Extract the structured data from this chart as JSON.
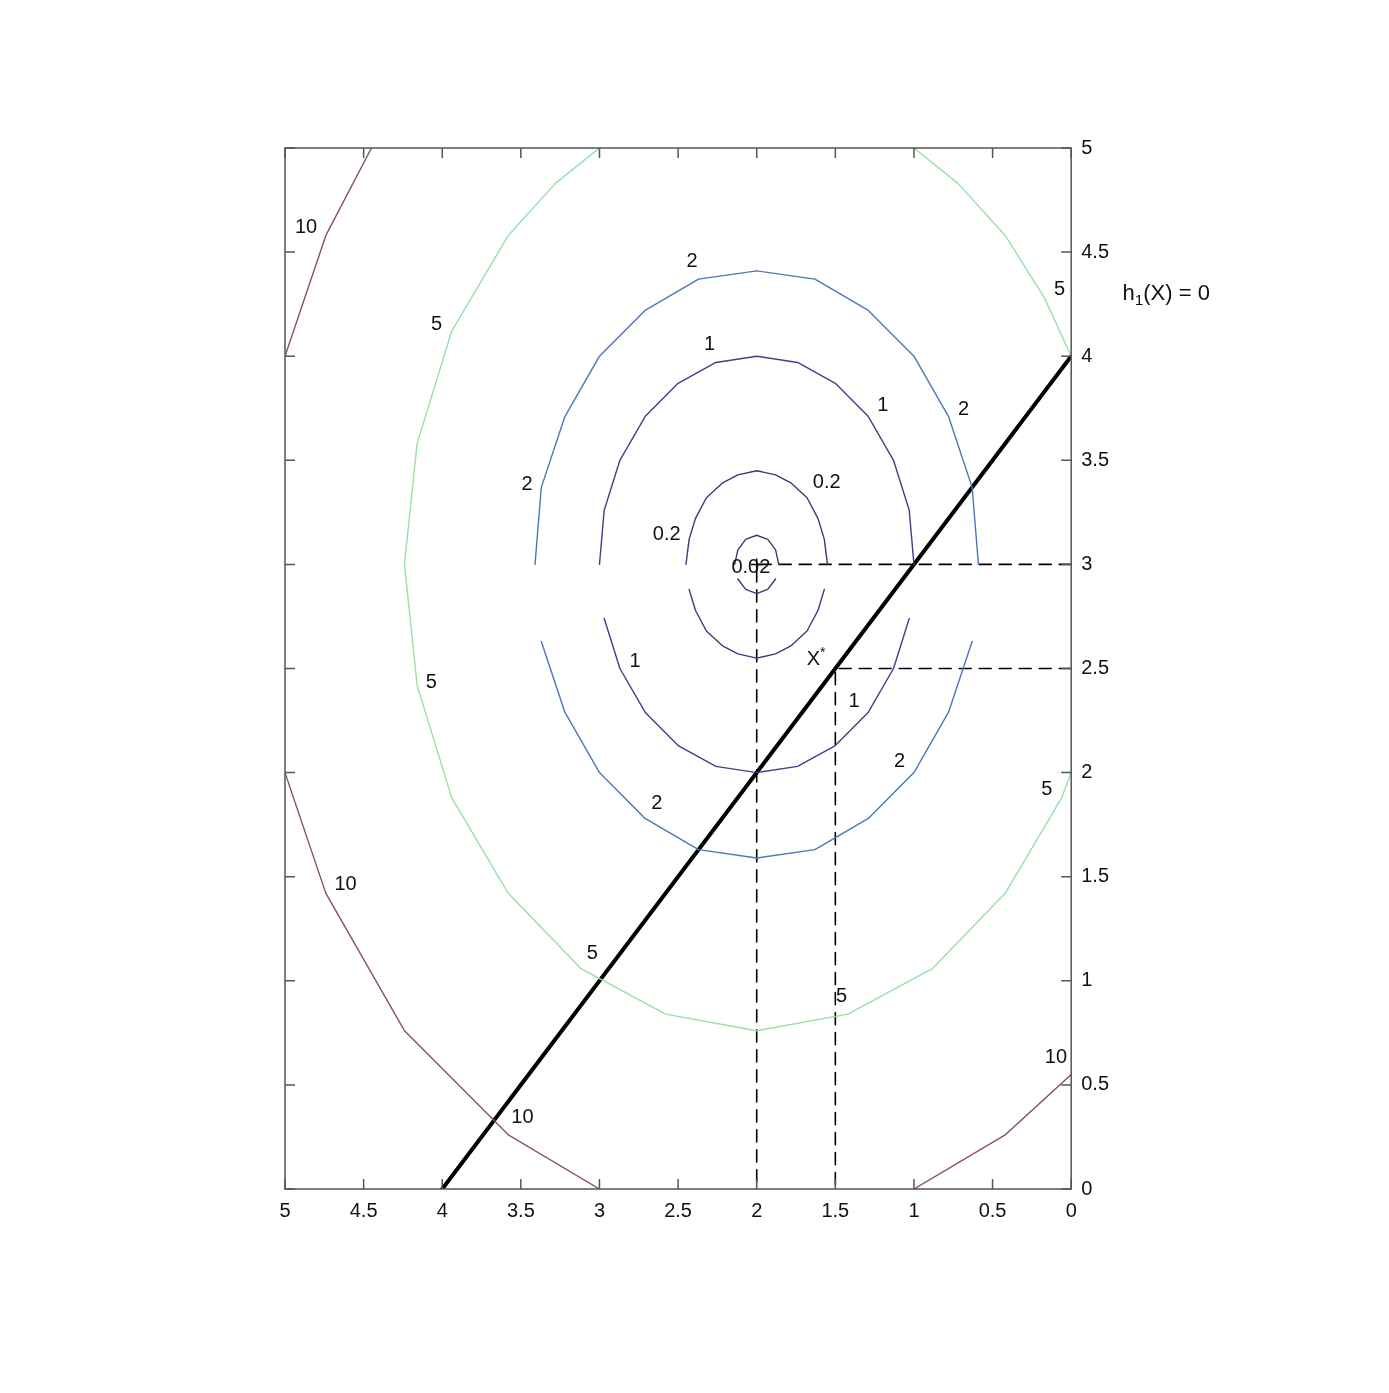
{
  "chart_data": {
    "type": "line",
    "xlim": [
      5,
      0
    ],
    "ylim": [
      0,
      5
    ],
    "xticks": [
      0,
      0.5,
      1,
      1.5,
      2,
      2.5,
      3,
      3.5,
      4,
      4.5,
      5
    ],
    "yticks": [
      0,
      0.5,
      1,
      1.5,
      2,
      2.5,
      3,
      3.5,
      4,
      4.5,
      5
    ],
    "legend": false,
    "grid": false,
    "series": [
      {
        "color": "#3a3a78",
        "x": [
          2.14,
          2.12,
          2.07,
          2,
          1.93,
          1.88,
          1.86
        ],
        "values": [
          3,
          3.07,
          3.12,
          3.14,
          3.12,
          3.07,
          3
        ]
      },
      {
        "color": "#3a3a78",
        "x": [
          1.88,
          1.93,
          2,
          2.07,
          2.12
        ],
        "values": [
          2.93,
          2.88,
          2.86,
          2.88,
          2.93
        ]
      },
      {
        "color": "#3a3a78",
        "x": [
          2.45,
          2.43,
          2.39,
          2.32,
          2.22,
          2.12,
          2,
          1.88,
          1.78,
          1.68,
          1.61,
          1.57,
          1.55
        ],
        "values": [
          3,
          3.12,
          3.22,
          3.32,
          3.39,
          3.43,
          3.45,
          3.43,
          3.39,
          3.32,
          3.22,
          3.12,
          3
        ]
      },
      {
        "color": "#3a3a78",
        "x": [
          1.57,
          1.61,
          1.68,
          1.78,
          1.88,
          2,
          2.12,
          2.22,
          2.32,
          2.39,
          2.43
        ],
        "values": [
          2.88,
          2.78,
          2.68,
          2.61,
          2.57,
          2.55,
          2.57,
          2.61,
          2.68,
          2.78,
          2.88
        ]
      },
      {
        "color": "#404088",
        "x": [
          3,
          2.97,
          2.87,
          2.71,
          2.5,
          2.26,
          2,
          1.74,
          1.5,
          1.29,
          1.13,
          1.03,
          1
        ],
        "values": [
          3,
          3.26,
          3.5,
          3.71,
          3.87,
          3.97,
          4,
          3.97,
          3.87,
          3.71,
          3.5,
          3.26,
          3
        ]
      },
      {
        "color": "#404088",
        "x": [
          1.03,
          1.13,
          1.29,
          1.5,
          1.74,
          2,
          2.26,
          2.5,
          2.71,
          2.87,
          2.97
        ],
        "values": [
          2.74,
          2.5,
          2.29,
          2.13,
          2.03,
          2,
          2.03,
          2.13,
          2.29,
          2.5,
          2.74
        ]
      },
      {
        "color": "#4a78b8",
        "x": [
          3.41,
          3.37,
          3.22,
          3,
          2.71,
          2.37,
          2,
          1.63,
          1.29,
          1,
          0.78,
          0.63,
          0.59
        ],
        "values": [
          3,
          3.37,
          3.71,
          4,
          4.22,
          4.37,
          4.41,
          4.37,
          4.22,
          4,
          3.71,
          3.37,
          3
        ]
      },
      {
        "color": "#4a78b8",
        "x": [
          0.63,
          0.78,
          1,
          1.29,
          1.63,
          2,
          2.37,
          2.71,
          3,
          3.22,
          3.37
        ],
        "values": [
          2.63,
          2.29,
          2,
          1.78,
          1.63,
          1.59,
          1.63,
          1.78,
          2,
          2.29,
          2.63
        ]
      },
      {
        "color": "#98e0a8",
        "x": [
          1,
          0.72,
          0.42,
          0.17,
          0
        ],
        "values": [
          5,
          4.83,
          4.58,
          4.28,
          4
        ]
      },
      {
        "color": "#98e0a8",
        "x": [
          0,
          0.06,
          0.42,
          0.88,
          1.42,
          2,
          2.58,
          3.12,
          3.58,
          3.94,
          4.16,
          4.24,
          4.16,
          3.94,
          3.58,
          3.28,
          3
        ],
        "values": [
          2,
          1.88,
          1.42,
          1.06,
          0.84,
          0.76,
          0.84,
          1.06,
          1.42,
          1.88,
          2.42,
          3,
          3.58,
          4.12,
          4.58,
          4.83,
          5
        ]
      },
      {
        "color": "#8a5060",
        "x": [
          5,
          4.74,
          4.45
        ],
        "values": [
          4,
          4.58,
          5
        ]
      },
      {
        "color": "#8a5060",
        "x": [
          3,
          3.58,
          4.24,
          4.74,
          5
        ],
        "values": [
          0,
          0.26,
          0.76,
          1.42,
          2
        ]
      },
      {
        "color": "#8a5060",
        "x": [
          0,
          0.42,
          1
        ],
        "values": [
          0.55,
          0.26,
          0
        ]
      },
      {
        "color": "#000000",
        "line_style": "dashed",
        "x": [
          0,
          2,
          2
        ],
        "values": [
          3,
          3,
          0
        ]
      },
      {
        "color": "#000000",
        "line_style": "dashed",
        "x": [
          0,
          1.5,
          1.5
        ],
        "values": [
          2.5,
          2.5,
          0
        ]
      },
      {
        "color": "#000000",
        "x": [
          4,
          0
        ],
        "values": [
          0,
          4
        ]
      },
      {
        "type": "scatter",
        "marker": "cross",
        "color": "#000000",
        "x": [
          2
        ],
        "values": [
          3
        ]
      }
    ],
    "annotations": [
      {
        "text": "0.02",
        "x": 1.93,
        "y": 2.88
      },
      {
        "text": "0.2",
        "x": 2.43,
        "y": 3.12
      },
      {
        "text": "0.2",
        "x": 1.68,
        "y": 3.32
      },
      {
        "text": "1",
        "x": 2.87,
        "y": 2.5
      },
      {
        "text": "1",
        "x": 2.26,
        "y": 3.97
      },
      {
        "text": "1",
        "x": 1.29,
        "y": 3.71
      },
      {
        "text": "1",
        "x": 1.29,
        "y": 2.29
      },
      {
        "text": "2",
        "x": 3.37,
        "y": 3.37
      },
      {
        "text": "2",
        "x": 2.37,
        "y": 4.37
      },
      {
        "text": "2",
        "x": 0.78,
        "y": 3.71
      },
      {
        "text": "2",
        "x": 1,
        "y": 2
      },
      {
        "text": "2",
        "x": 2.71,
        "y": 1.78
      },
      {
        "text": "5",
        "x": 4.16,
        "y": 2.42
      },
      {
        "text": "5",
        "x": 3.94,
        "y": 4.12
      },
      {
        "text": "5",
        "x": 0.17,
        "y": 4.28
      },
      {
        "text": "5",
        "x": 0.06,
        "y": 1.88
      },
      {
        "text": "5",
        "x": 1.42,
        "y": 0.84
      },
      {
        "text": "5",
        "x": 3.12,
        "y": 1.06
      },
      {
        "text": "10",
        "x": 4.74,
        "y": 4.58
      },
      {
        "text": "10",
        "x": 4.74,
        "y": 1.42
      },
      {
        "text": "10",
        "x": 3.58,
        "y": 0.26
      },
      {
        "text": "10",
        "x": 0,
        "y": 0.55
      },
      {
        "text": "X$^{*}$",
        "x": 1.5,
        "y": 2.5
      },
      "h$_{1}$(X) = 0"
    ]
  }
}
